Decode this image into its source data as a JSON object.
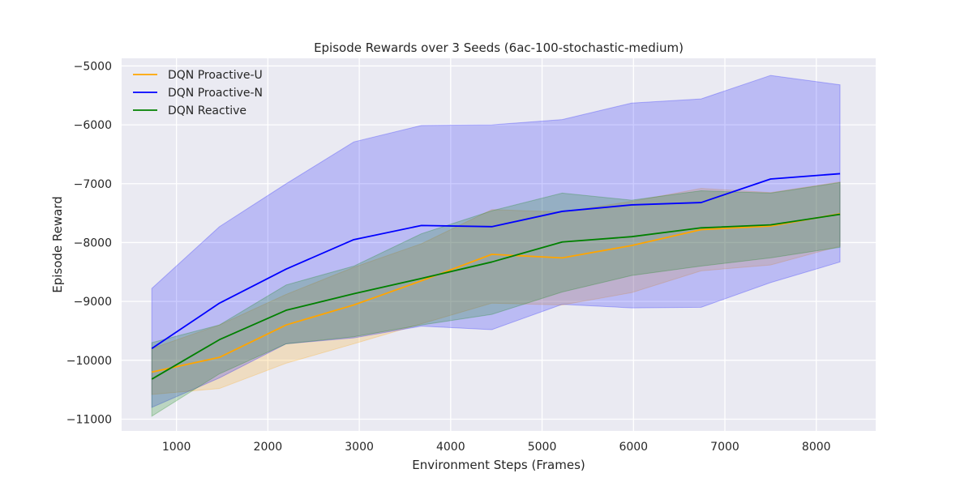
{
  "chart_data": {
    "type": "line",
    "title": "Episode Rewards over 3 Seeds (6ac-100-stochastic-medium)",
    "xlabel": "Environment Steps (Frames)",
    "ylabel": "Episode Reward",
    "xlim": [
      400,
      8650
    ],
    "ylim": [
      -11200,
      -4870
    ],
    "xticks": [
      1000,
      2000,
      3000,
      4000,
      5000,
      6000,
      7000,
      8000
    ],
    "yticks": [
      -11000,
      -10000,
      -9000,
      -8000,
      -7000,
      -6000,
      -5000
    ],
    "grid": true,
    "legend_position": "top-left",
    "background": "#eaeaf2",
    "x": [
      730,
      1470,
      2200,
      2940,
      3680,
      4450,
      5220,
      5980,
      6740,
      7500,
      8260
    ],
    "series": [
      {
        "name": "DQN Proactive-U",
        "color": "#ffa500",
        "mean": [
          -10200,
          -9950,
          -9400,
          -9060,
          -8650,
          -8200,
          -8260,
          -8050,
          -7780,
          -7720,
          -7510
        ],
        "lower": [
          -10580,
          -10480,
          -10050,
          -9720,
          -9380,
          -9030,
          -9060,
          -8850,
          -8480,
          -8380,
          -8060
        ],
        "upper": [
          -9800,
          -9400,
          -8880,
          -8420,
          -8020,
          -7440,
          -7480,
          -7300,
          -7080,
          -7150,
          -6970
        ]
      },
      {
        "name": "DQN Proactive-N",
        "color": "#0000ff",
        "mean": [
          -9800,
          -9030,
          -8450,
          -7950,
          -7710,
          -7730,
          -7470,
          -7360,
          -7320,
          -6920,
          -6830
        ],
        "lower": [
          -10800,
          -10300,
          -9720,
          -9620,
          -9420,
          -9480,
          -9050,
          -9110,
          -9100,
          -8680,
          -8330
        ],
        "upper": [
          -8780,
          -7730,
          -7000,
          -6290,
          -6010,
          -6000,
          -5910,
          -5630,
          -5560,
          -5160,
          -5320
        ]
      },
      {
        "name": "DQN Reactive",
        "color": "#008000",
        "mean": [
          -10320,
          -9650,
          -9150,
          -8870,
          -8610,
          -8330,
          -7990,
          -7900,
          -7750,
          -7700,
          -7520
        ],
        "lower": [
          -10950,
          -10230,
          -9720,
          -9600,
          -9400,
          -9220,
          -8840,
          -8560,
          -8400,
          -8260,
          -8080
        ],
        "upper": [
          -9700,
          -9400,
          -8720,
          -8400,
          -7850,
          -7460,
          -7160,
          -7280,
          -7120,
          -7160,
          -6980
        ]
      }
    ]
  }
}
